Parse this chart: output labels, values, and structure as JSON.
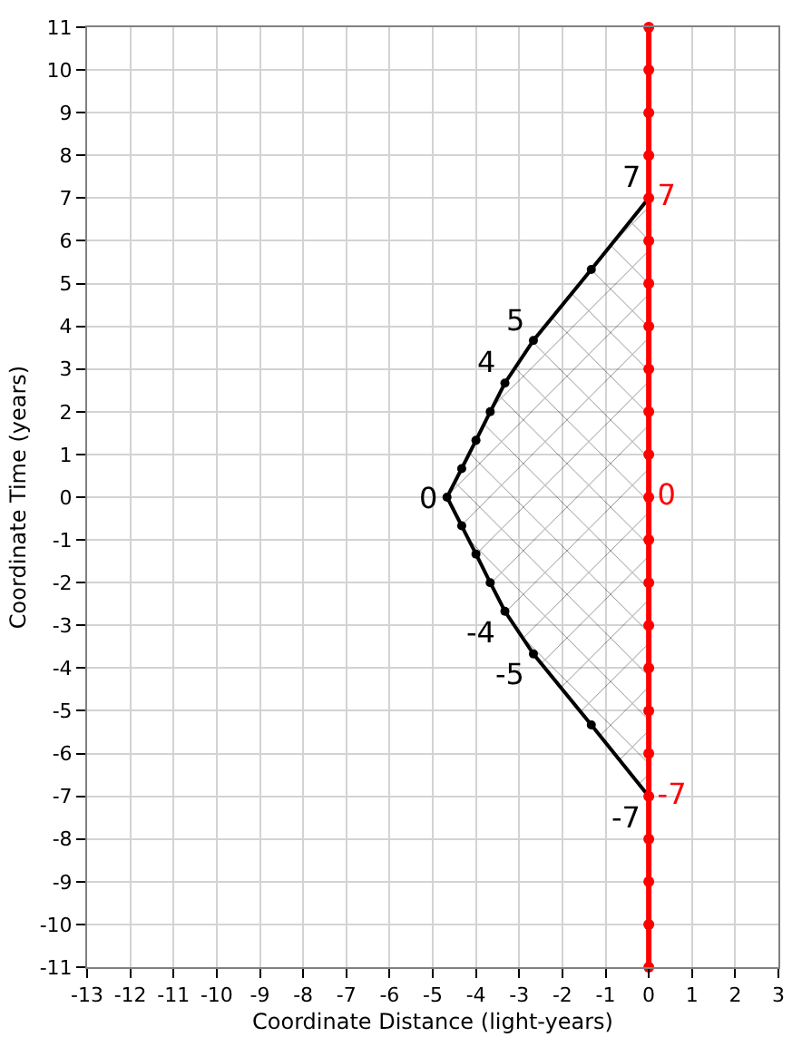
{
  "chart_data": {
    "type": "line",
    "xlabel": "Coordinate Distance (light-years)",
    "ylabel": "Coordinate Time (years)",
    "xlim": [
      -13,
      3
    ],
    "ylim": [
      -11,
      11
    ],
    "xticks": [
      -13,
      -12,
      -11,
      -10,
      -9,
      -8,
      -7,
      -6,
      -5,
      -4,
      -3,
      -2,
      -1,
      0,
      1,
      2,
      3
    ],
    "yticks": [
      -11,
      -10,
      -9,
      -8,
      -7,
      -6,
      -5,
      -4,
      -3,
      -2,
      -1,
      0,
      1,
      2,
      3,
      4,
      5,
      6,
      7,
      8,
      9,
      10,
      11
    ],
    "annotations": [
      {
        "text": "-7",
        "x": 0,
        "y": -7
      },
      {
        "text": "-5",
        "x": -2.67,
        "y": -3.67
      },
      {
        "text": "-4",
        "x": -3.33,
        "y": -2.67
      },
      {
        "text": "0",
        "x": -4.67,
        "y": 0
      },
      {
        "text": "4",
        "x": -3.33,
        "y": 2.67
      },
      {
        "text": "5",
        "x": -2.67,
        "y": 3.67
      },
      {
        "text": "7",
        "x": 0,
        "y": 7
      }
    ],
    "grid": true,
    "marker": "circle",
    "line_style": "solid",
    "series": [
      {
        "type": "area",
        "color": "#000000",
        "x": [
          0,
          -1.33,
          -2.67,
          -3.33,
          -3.67,
          -4,
          -4.33,
          -4.67,
          -4.33,
          -4,
          -3.67,
          -3.33,
          -2.67,
          -1.33,
          0
        ],
        "values": [
          -7,
          -5.33,
          -3.67,
          -2.67,
          -2,
          -1.33,
          -0.67,
          0,
          0.67,
          1.33,
          2,
          2.67,
          3.67,
          5.33,
          7
        ]
      },
      {
        "color": "#ff0000",
        "x": [
          0,
          0,
          0,
          0,
          0,
          0,
          0,
          0,
          0,
          0,
          0,
          0,
          0,
          0,
          0,
          0,
          0,
          0,
          0,
          0,
          0,
          0,
          0
        ],
        "values": [
          -11,
          -10,
          -9,
          -8,
          -7,
          -6,
          -5,
          -4,
          -3,
          -2,
          -1,
          0,
          1,
          2,
          3,
          4,
          5,
          6,
          7,
          8,
          9,
          10,
          11
        ],
        "value_labels": [
          null,
          null,
          null,
          null,
          "-7",
          null,
          null,
          null,
          null,
          null,
          null,
          "0",
          null,
          null,
          null,
          null,
          null,
          null,
          "7",
          null,
          null,
          null,
          null
        ]
      }
    ]
  }
}
